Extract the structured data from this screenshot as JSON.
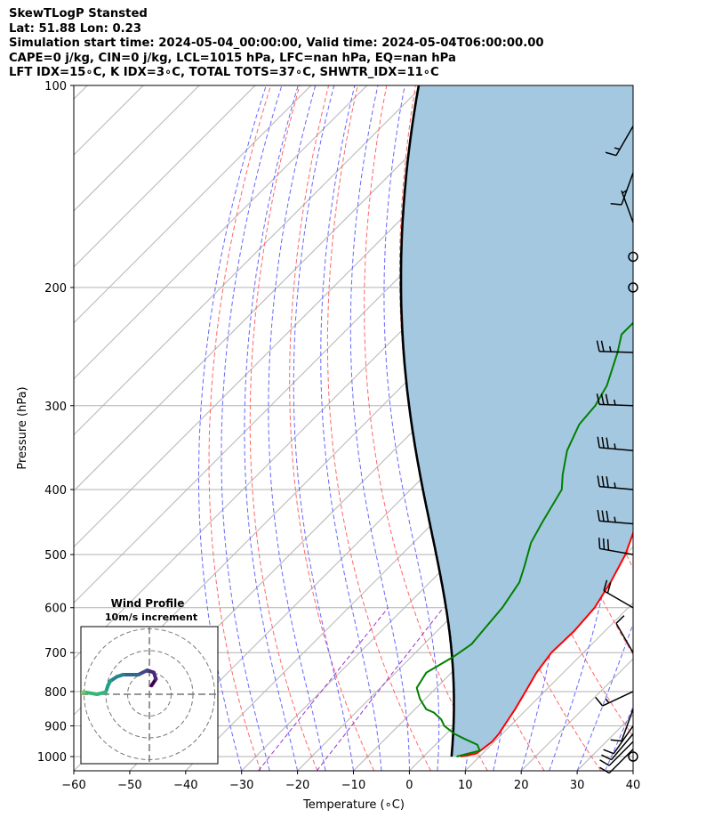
{
  "header": {
    "line1": "SkewTLogP Stansted",
    "line2": "Lat: 51.88   Lon: 0.23",
    "line3": "Simulation start time: 2024-05-04_00:00:00, Valid time: 2024-05-04T06:00:00.00",
    "line4": "CAPE=0 j/kg, CIN=0 j/kg, LCL=1015 hPa, LFC=nan hPa, EQ=nan hPa",
    "line5": "LFT IDX=15∘C, K IDX=3∘C, TOTAL TOTS=37∘C, SHWTR_IDX=11∘C"
  },
  "chart_data": {
    "type": "skewt-logp",
    "xlabel": "Temperature (∘C)",
    "ylabel": "Pressure (hPa)",
    "xlim": [
      -60,
      40
    ],
    "ylim": [
      1050,
      100
    ],
    "yscale": "log",
    "grid": true,
    "x_ticks": [
      "−60",
      "−50",
      "−40",
      "−30",
      "−20",
      "−10",
      "0",
      "10",
      "20",
      "30",
      "40"
    ],
    "x_tick_values": [
      -60,
      -50,
      -40,
      -30,
      -20,
      -10,
      0,
      10,
      20,
      30,
      40
    ],
    "y_ticks": [
      "100",
      "200",
      "300",
      "400",
      "500",
      "600",
      "700",
      "800",
      "900",
      "1000"
    ],
    "y_tick_values": [
      100,
      200,
      300,
      400,
      500,
      600,
      700,
      800,
      900,
      1000
    ],
    "temperature_profile": {
      "color": "#ff0000",
      "points": [
        [
          1000,
          6.6
        ],
        [
          990,
          8.9
        ],
        [
          975,
          9.2
        ],
        [
          950,
          9.6
        ],
        [
          925,
          9.4
        ],
        [
          900,
          8.9
        ],
        [
          850,
          7.9
        ],
        [
          800,
          6.6
        ],
        [
          750,
          5.2
        ],
        [
          700,
          4.3
        ],
        [
          650,
          4.5
        ],
        [
          600,
          4.0
        ],
        [
          550,
          2.3
        ],
        [
          500,
          0.0
        ],
        [
          450,
          -3.5
        ],
        [
          400,
          -7.5
        ],
        [
          350,
          -11.0
        ],
        [
          330,
          -13.0
        ],
        [
          310,
          -13.5
        ],
        [
          300,
          -14.5
        ],
        [
          270,
          -17.0
        ],
        [
          250,
          -19.0
        ],
        [
          240,
          -17.5
        ],
        [
          225,
          -17.0
        ],
        [
          200,
          -15.5
        ],
        [
          175,
          -15.0
        ],
        [
          150,
          -14.5
        ],
        [
          125,
          -14.0
        ],
        [
          100,
          -13.5
        ]
      ]
    },
    "dewpoint_profile": {
      "color": "#008000",
      "points": [
        [
          1000,
          5.9
        ],
        [
          980,
          9.0
        ],
        [
          960,
          7.5
        ],
        [
          940,
          4.0
        ],
        [
          925,
          1.5
        ],
        [
          900,
          -1.8
        ],
        [
          880,
          -3.5
        ],
        [
          860,
          -6.0
        ],
        [
          850,
          -8.0
        ],
        [
          820,
          -11.0
        ],
        [
          790,
          -13.5
        ],
        [
          750,
          -14.5
        ],
        [
          710,
          -12.5
        ],
        [
          680,
          -11.5
        ],
        [
          640,
          -12.0
        ],
        [
          600,
          -12.5
        ],
        [
          550,
          -14.0
        ],
        [
          520,
          -16.0
        ],
        [
          480,
          -19.0
        ],
        [
          450,
          -20.5
        ],
        [
          400,
          -23.0
        ],
        [
          380,
          -25.5
        ],
        [
          350,
          -29.0
        ],
        [
          320,
          -31.5
        ],
        [
          300,
          -32.0
        ],
        [
          280,
          -33.5
        ],
        [
          250,
          -37.5
        ],
        [
          235,
          -40.0
        ],
        [
          210,
          -40.0
        ],
        [
          180,
          -43.5
        ],
        [
          165,
          -46.0
        ],
        [
          150,
          -46.5
        ],
        [
          130,
          -48.0
        ],
        [
          110,
          -50.0
        ],
        [
          100,
          -52.0
        ]
      ]
    },
    "parcel_profile": {
      "color": "#000000",
      "start": {
        "pressure_hPa": 1000,
        "temperature_C": 5.0
      },
      "lcl_hPa": 1015
    },
    "cape_cin_shading": {
      "color": "#a5c8e1"
    },
    "reference_lines": {
      "isotherms": {
        "color": "#b3b3b3"
      },
      "dry_adiabats": {
        "color": "#ff6666"
      },
      "moist_adiabats": {
        "color": "#6666ff"
      },
      "mixing_ratio": {
        "color": "#9933cc"
      }
    },
    "wind_barbs": {
      "color": "#000000",
      "barbs": [
        {
          "pressure_hPa": 1000,
          "speed_kt": 0,
          "dir_deg": 0
        },
        {
          "pressure_hPa": 975,
          "speed_kt": 10,
          "dir_deg": 225
        },
        {
          "pressure_hPa": 950,
          "speed_kt": 10,
          "dir_deg": 225
        },
        {
          "pressure_hPa": 925,
          "speed_kt": 10,
          "dir_deg": 220
        },
        {
          "pressure_hPa": 900,
          "speed_kt": 10,
          "dir_deg": 215
        },
        {
          "pressure_hPa": 850,
          "speed_kt": 10,
          "dir_deg": 200
        },
        {
          "pressure_hPa": 800,
          "speed_kt": 15,
          "dir_deg": 245
        },
        {
          "pressure_hPa": 700,
          "speed_kt": 10,
          "dir_deg": 330
        },
        {
          "pressure_hPa": 600,
          "speed_kt": 20,
          "dir_deg": 300
        },
        {
          "pressure_hPa": 500,
          "speed_kt": 30,
          "dir_deg": 280
        },
        {
          "pressure_hPa": 450,
          "speed_kt": 35,
          "dir_deg": 275
        },
        {
          "pressure_hPa": 400,
          "speed_kt": 35,
          "dir_deg": 275
        },
        {
          "pressure_hPa": 350,
          "speed_kt": 35,
          "dir_deg": 275
        },
        {
          "pressure_hPa": 300,
          "speed_kt": 35,
          "dir_deg": 272
        },
        {
          "pressure_hPa": 250,
          "speed_kt": 25,
          "dir_deg": 272
        },
        {
          "pressure_hPa": 200,
          "speed_kt": 0,
          "dir_deg": 0
        },
        {
          "pressure_hPa": 180,
          "speed_kt": 0,
          "dir_deg": 0
        },
        {
          "pressure_hPa": 160,
          "speed_kt": 5,
          "dir_deg": 340
        },
        {
          "pressure_hPa": 135,
          "speed_kt": 10,
          "dir_deg": 200
        },
        {
          "pressure_hPa": 115,
          "speed_kt": 15,
          "dir_deg": 210
        }
      ]
    },
    "hodograph": {
      "title": "Wind Profile",
      "subtitle": "10m/s increment",
      "ring_increment_ms": 10,
      "rings": 3,
      "colormap": "viridis",
      "points": [
        [
          1,
          4
        ],
        [
          3,
          7
        ],
        [
          2,
          10
        ],
        [
          -1,
          11
        ],
        [
          -3,
          10
        ],
        [
          -5,
          9
        ],
        [
          -9,
          9
        ],
        [
          -12,
          9
        ],
        [
          -15,
          8
        ],
        [
          -18,
          6
        ],
        [
          -19,
          4
        ],
        [
          -20,
          1
        ],
        [
          -24,
          0
        ],
        [
          -30,
          1
        ],
        [
          -34,
          0
        ],
        [
          -38,
          1
        ],
        [
          -40,
          1
        ],
        [
          -42,
          2
        ],
        [
          -45,
          1
        ]
      ]
    }
  }
}
